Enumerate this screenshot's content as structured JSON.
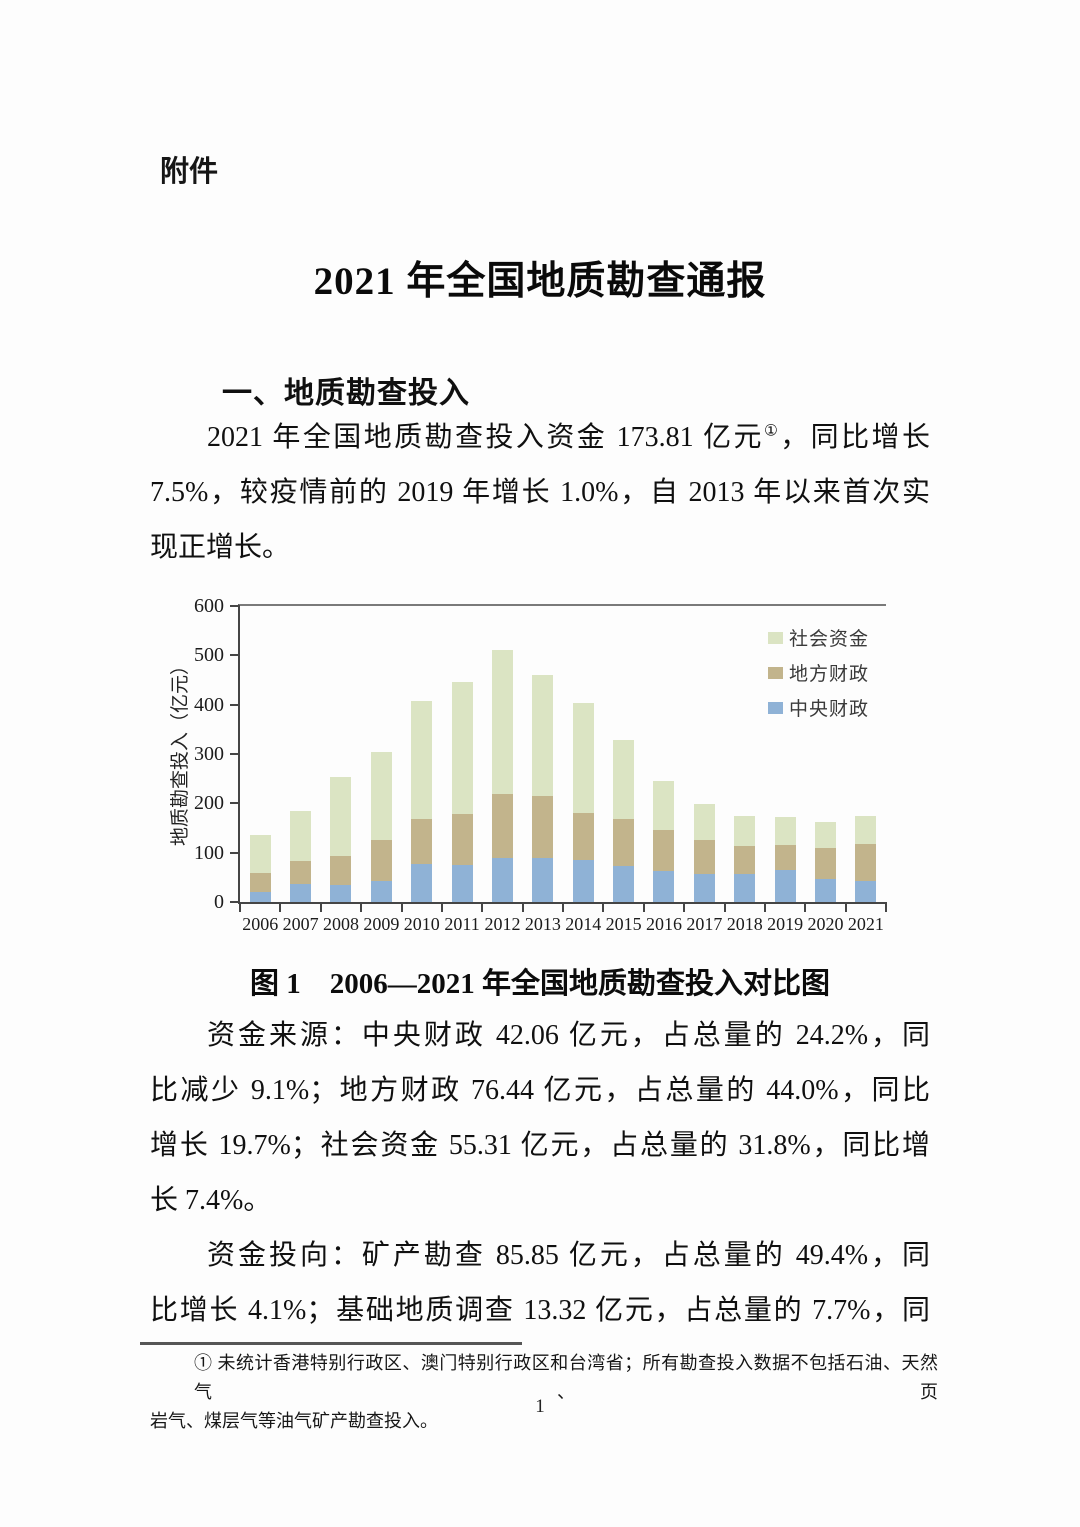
{
  "page": {
    "attachment_label": "附件",
    "title": "2021 年全国地质勘查通报",
    "section_heading": "一、地质勘查投入",
    "page_number": "1"
  },
  "paragraphs": [
    {
      "name": "para-investment-overview",
      "lines": [
        {
          "segments": [
            {
              "text": "2021 年全国地质勘查投入资金 173.81 亿元"
            },
            {
              "text": "①",
              "sup": true
            },
            {
              "text": "，同比增长"
            }
          ],
          "fill": true,
          "indent": true
        },
        {
          "text": "7.5%，较疫情前的 2019 年增长 1.0%，自 2013 年以来首次实",
          "fill": true
        },
        {
          "text": "现正增长。"
        }
      ]
    },
    {
      "name": "para-funding-sources",
      "lines": [
        {
          "text": "资金来源：中央财政 42.06 亿元，占总量的 24.2%，同",
          "fill": true,
          "indent": true
        },
        {
          "text": "比减少 9.1%；地方财政 76.44 亿元，占总量的 44.0%，同比",
          "fill": true
        },
        {
          "text": "增长 19.7%；社会资金 55.31 亿元，占总量的 31.8%，同比增",
          "fill": true
        },
        {
          "text": "长 7.4%。"
        }
      ]
    },
    {
      "name": "para-funding-direction",
      "lines": [
        {
          "text": "资金投向：矿产勘查 85.85 亿元，占总量的 49.4%，同",
          "fill": true,
          "indent": true
        },
        {
          "text": "比增长 4.1%；基础地质调查 13.32 亿元，占总量的 7.7%，同",
          "fill": true
        }
      ]
    }
  ],
  "figure": {
    "caption": "图 1　2006—2021 年全国地质勘查投入对比图"
  },
  "chart_data": {
    "type": "bar",
    "stacked": true,
    "title": "",
    "xlabel": "",
    "ylabel": "地质勘查投入（亿元）",
    "ylim": [
      0,
      600
    ],
    "yticks": [
      0,
      100,
      200,
      300,
      400,
      500,
      600
    ],
    "grid": false,
    "legend_position": "top-right-inside",
    "legend": [
      "社会资金",
      "地方财政",
      "中央财政"
    ],
    "categories": [
      "2006",
      "2007",
      "2008",
      "2009",
      "2010",
      "2011",
      "2012",
      "2013",
      "2014",
      "2015",
      "2016",
      "2017",
      "2018",
      "2019",
      "2020",
      "2021"
    ],
    "series": [
      {
        "name": "中央财政",
        "color": "#8fb2d6",
        "values": [
          20,
          36,
          35,
          42,
          78,
          75,
          90,
          90,
          85,
          72,
          63,
          57,
          56,
          64,
          46,
          42.06
        ]
      },
      {
        "name": "地方财政",
        "color": "#c2b48c",
        "values": [
          38,
          47,
          59,
          83,
          90,
          104,
          129,
          124,
          96,
          96,
          82,
          69,
          57,
          51,
          64,
          76.44
        ]
      },
      {
        "name": "社会资金",
        "color": "#dbe4c3",
        "values": [
          77,
          102,
          159,
          179,
          240,
          266,
          291,
          246,
          222,
          160,
          101,
          72,
          62,
          57,
          52,
          55.31
        ]
      }
    ]
  },
  "footnote": {
    "lines": [
      {
        "text": "① 未统计香港特别行政区、澳门特别行政区和台湾省；所有勘查投入数据不包括石油、天然气、页",
        "fill": true,
        "indent": true
      },
      {
        "text": "岩气、煤层气等油气矿产勘查投入。"
      }
    ]
  }
}
